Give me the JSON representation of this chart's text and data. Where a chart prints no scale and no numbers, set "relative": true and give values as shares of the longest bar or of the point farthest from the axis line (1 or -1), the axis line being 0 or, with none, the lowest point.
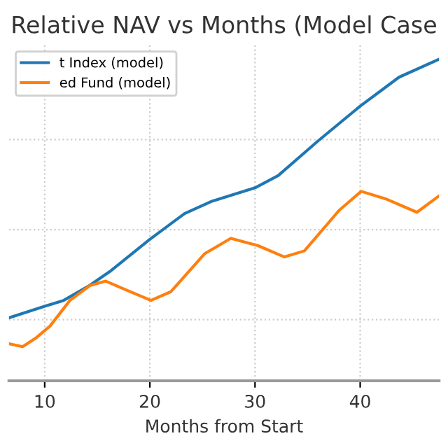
{
  "chart_data": {
    "type": "line",
    "title": "Relative NAV vs Months (Model Case",
    "xlabel": "Months from Start",
    "relative": true,
    "xlim": [
      6.6,
      47.5
    ],
    "xticks": [
      10,
      20,
      30,
      40
    ],
    "grid": true,
    "legend": "top left",
    "line_style": "solid",
    "marker": "none",
    "series": [
      {
        "name": "t Index (model)",
        "color": "#1f77b4",
        "x": [
          6.6,
          10,
          11.8,
          14.3,
          16.2,
          20,
          23.3,
          25.8,
          30,
          32.2,
          36,
          40,
          43.7,
          47.5
        ],
        "values": [
          0.196,
          0.232,
          0.25,
          0.297,
          0.34,
          0.44,
          0.52,
          0.557,
          0.6,
          0.638,
          0.746,
          0.854,
          0.944,
          1.0
        ]
      },
      {
        "name": "ed Fund (model)",
        "color": "#ff7f0e",
        "x": [
          6.6,
          7.9,
          9.2,
          10.5,
          12.4,
          14.3,
          15.8,
          17.5,
          20.1,
          22,
          25.2,
          27.7,
          30.3,
          32.8,
          34.7,
          38,
          40.1,
          42.4,
          45.4,
          47.5
        ],
        "values": [
          0.115,
          0.106,
          0.134,
          0.17,
          0.25,
          0.296,
          0.31,
          0.286,
          0.25,
          0.277,
          0.395,
          0.443,
          0.42,
          0.385,
          0.404,
          0.53,
          0.589,
          0.566,
          0.524,
          0.575
        ]
      }
    ]
  }
}
